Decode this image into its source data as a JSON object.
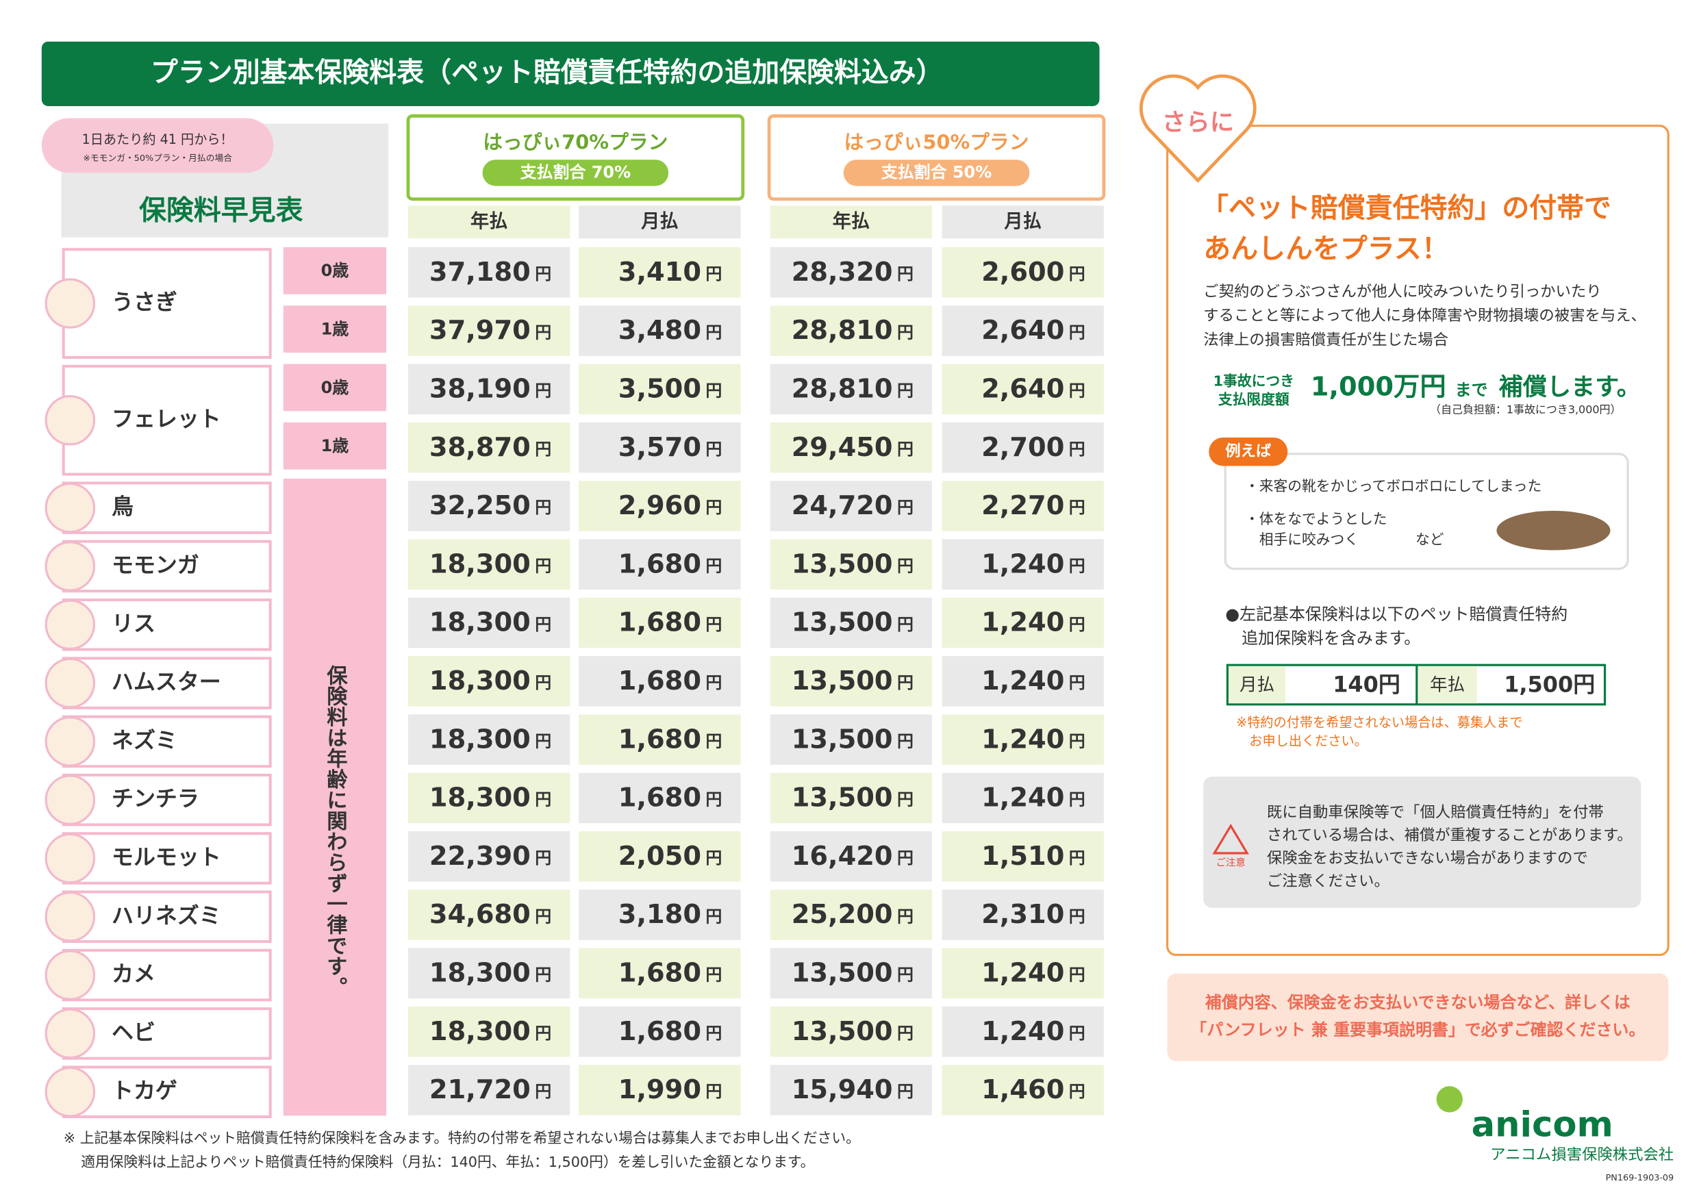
{
  "header": {
    "title": "プラン別基本保険料表（ペット賠償責任特約の追加保険料込み）",
    "badge": [
      "1日あたり約 41 円から！",
      "※モモンガ・50%プラン・月払の場合"
    ],
    "table_title": "保険料早見表"
  },
  "plans": [
    {
      "name": "はっぴぃ70%プラン",
      "ratio": "支払割合 70%"
    },
    {
      "name": "はっぴぃ50%プラン",
      "ratio": "支払割合 50%"
    }
  ],
  "columns": [
    "年払",
    "月払",
    "年払",
    "月払"
  ],
  "yen": "円",
  "uniform_note": "保険料は年齢に関わらず一律です。",
  "animals": [
    {
      "name": "うさぎ",
      "rows": [
        {
          "age": "0歳",
          "prices": [
            "37,180",
            "3,410",
            "28,320",
            "2,600"
          ]
        },
        {
          "age": "1歳",
          "prices": [
            "37,970",
            "3,480",
            "28,810",
            "2,640"
          ]
        }
      ]
    },
    {
      "name": "フェレット",
      "rows": [
        {
          "age": "0歳",
          "prices": [
            "38,190",
            "3,500",
            "28,810",
            "2,640"
          ]
        },
        {
          "age": "1歳",
          "prices": [
            "38,870",
            "3,570",
            "29,450",
            "2,700"
          ]
        }
      ]
    },
    {
      "name": "鳥",
      "rows": [
        {
          "prices": [
            "32,250",
            "2,960",
            "24,720",
            "2,270"
          ]
        }
      ]
    },
    {
      "name": "モモンガ",
      "rows": [
        {
          "prices": [
            "18,300",
            "1,680",
            "13,500",
            "1,240"
          ]
        }
      ]
    },
    {
      "name": "リス",
      "rows": [
        {
          "prices": [
            "18,300",
            "1,680",
            "13,500",
            "1,240"
          ]
        }
      ]
    },
    {
      "name": "ハムスター",
      "rows": [
        {
          "prices": [
            "18,300",
            "1,680",
            "13,500",
            "1,240"
          ]
        }
      ]
    },
    {
      "name": "ネズミ",
      "rows": [
        {
          "prices": [
            "18,300",
            "1,680",
            "13,500",
            "1,240"
          ]
        }
      ]
    },
    {
      "name": "チンチラ",
      "rows": [
        {
          "prices": [
            "18,300",
            "1,680",
            "13,500",
            "1,240"
          ]
        }
      ]
    },
    {
      "name": "モルモット",
      "rows": [
        {
          "prices": [
            "22,390",
            "2,050",
            "16,420",
            "1,510"
          ]
        }
      ]
    },
    {
      "name": "ハリネズミ",
      "rows": [
        {
          "prices": [
            "34,680",
            "3,180",
            "25,200",
            "2,310"
          ]
        }
      ]
    },
    {
      "name": "カメ",
      "rows": [
        {
          "prices": [
            "18,300",
            "1,680",
            "13,500",
            "1,240"
          ]
        }
      ]
    },
    {
      "name": "ヘビ",
      "rows": [
        {
          "prices": [
            "18,300",
            "1,680",
            "13,500",
            "1,240"
          ]
        }
      ]
    },
    {
      "name": "トカゲ",
      "rows": [
        {
          "prices": [
            "21,720",
            "1,990",
            "15,940",
            "1,460"
          ]
        }
      ]
    }
  ],
  "side": {
    "heart": "さらに",
    "heading": [
      "「ペット賠償責任特約」の付帯で",
      "あんしんをプラス！"
    ],
    "body": [
      "ご契約のどうぶつさんが他人に咬みついたり引っかいたり",
      "することと等によって他人に身体障害や財物損壊の被害を与え、",
      "法律上の損害賠償責任が生じた場合"
    ],
    "limit_label": [
      "1事故につき",
      "支払限度額"
    ],
    "limit_amount": "1,000万円",
    "limit_mid": "まで",
    "limit_tail": "補償します。",
    "deductible": "（自己負担額：1事故につき3,000円）",
    "example_tag": "例えば",
    "examples": [
      "・来客の靴をかじってボロボロにしてしまった",
      "・体をなでようとした",
      "　相手に咬みつく　　　　など"
    ],
    "included_note": [
      "●左記基本保険料は以下のペット賠償責任特約",
      "　追加保険料を含みます。"
    ],
    "fees": [
      {
        "label": "月払",
        "amount": "140円"
      },
      {
        "label": "年払",
        "amount": "1,500円"
      }
    ],
    "opt_out": [
      "※特約の付帯を希望されない場合は、募集人まで",
      "　お申し出ください。"
    ],
    "caution_label": "ご注意",
    "caution": [
      "既に自動車保険等で「個人賠償責任特約」を付帯",
      "されている場合は、補償が重複することがあります。",
      "保険金をお支払いできない場合がありますので",
      "ご注意ください。"
    ],
    "bottom": [
      "補償内容、保険金をお支払いできない場合など、詳しくは",
      "「パンフレット 兼 重要事項説明書」で必ずご確認ください。"
    ]
  },
  "footer": {
    "notes": [
      "※ 上記基本保険料はペット賠償責任特約保険料を含みます。特約の付帯を希望されない場合は募集人までお申し出ください。",
      "適用保険料は上記よりペット賠償責任特約保険料（月払：140円、年払：1,500円）を差し引いた金額となります。"
    ],
    "logo": "anicom",
    "company": "アニコム損害保険株式会社",
    "code": "PN169-1903-09"
  }
}
